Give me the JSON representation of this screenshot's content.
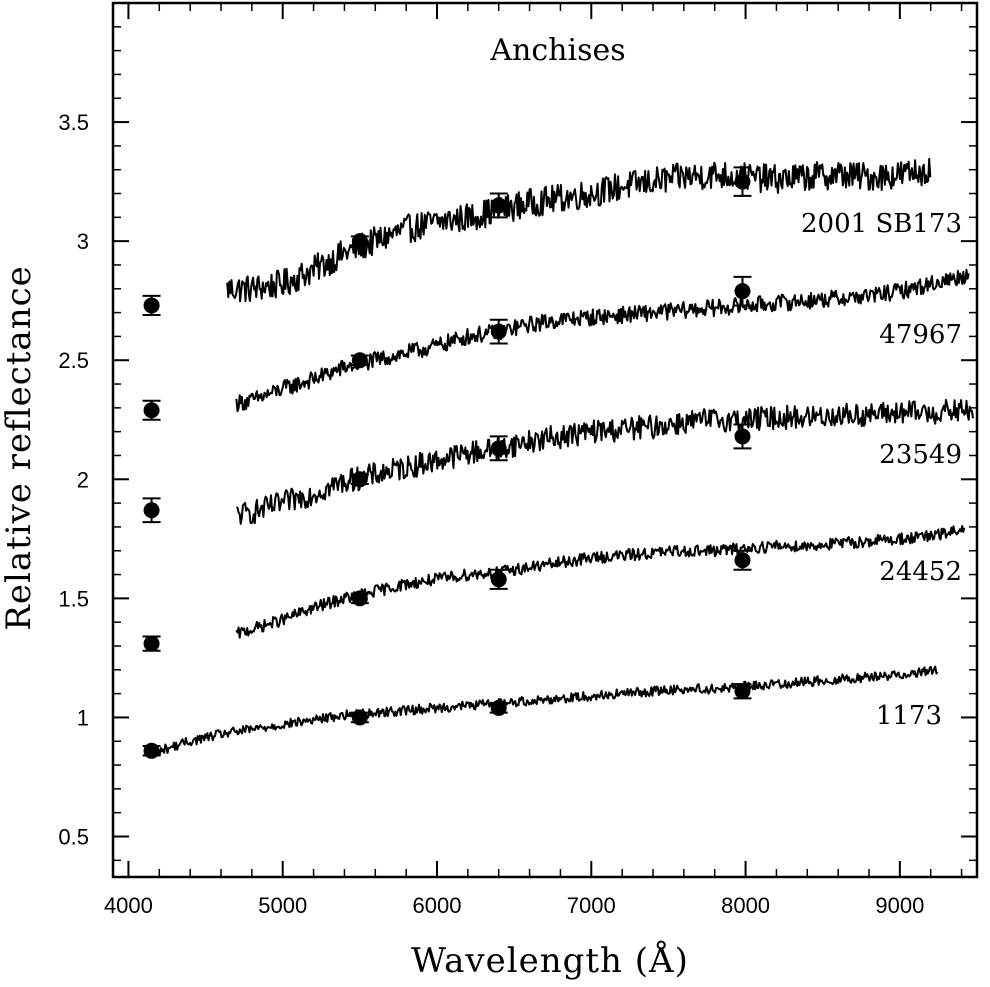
{
  "chart_data": {
    "type": "line",
    "title": "Anchises",
    "xlabel": "Wavelength (Å)",
    "ylabel": "Relative reflectance",
    "xlim": [
      3900,
      9500
    ],
    "ylim": [
      0.33,
      4.0
    ],
    "xticks": [
      4000,
      5000,
      6000,
      7000,
      8000,
      9000
    ],
    "xtick_labels": [
      "4000",
      "5000",
      "6000",
      "7000",
      "8000",
      "9000"
    ],
    "yticks": [
      0.5,
      1,
      1.5,
      2,
      2.5,
      3,
      3.5
    ],
    "ytick_labels": [
      "0.5",
      "1",
      "1.5",
      "2",
      "2.5",
      "3",
      "3.5"
    ],
    "grid": false,
    "legend": "none",
    "line_color": "#000000",
    "series": [
      {
        "name": "2001 SB173",
        "spectrum": {
          "x": [
            4640,
            4800,
            5000,
            5200,
            5400,
            5600,
            5800,
            6000,
            6200,
            6400,
            6600,
            6800,
            7000,
            7200,
            7400,
            7600,
            7800,
            8000,
            8200,
            8400,
            8600,
            8800,
            9000,
            9200
          ],
          "y": [
            2.8,
            2.8,
            2.82,
            2.88,
            2.95,
            3.0,
            3.05,
            3.08,
            3.1,
            3.13,
            3.16,
            3.18,
            3.2,
            3.23,
            3.25,
            3.27,
            3.28,
            3.27,
            3.26,
            3.27,
            3.28,
            3.27,
            3.28,
            3.3
          ],
          "noise": 0.06
        },
        "photometry": [
          {
            "x": 4150,
            "y": 2.73,
            "err": 0.04
          },
          {
            "x": 5500,
            "y": 3.0,
            "err": 0.02
          },
          {
            "x": 6400,
            "y": 3.15,
            "err": 0.05
          },
          {
            "x": 7980,
            "y": 3.25,
            "err": 0.06
          }
        ]
      },
      {
        "name": "47967",
        "spectrum": {
          "x": [
            4700,
            4800,
            5000,
            5200,
            5400,
            5600,
            5800,
            6000,
            6200,
            6400,
            6600,
            6800,
            7000,
            7200,
            7400,
            7600,
            7800,
            8000,
            8200,
            8400,
            8600,
            8800,
            9000,
            9200,
            9450
          ],
          "y": [
            2.32,
            2.33,
            2.38,
            2.42,
            2.47,
            2.5,
            2.53,
            2.56,
            2.6,
            2.62,
            2.65,
            2.67,
            2.68,
            2.69,
            2.7,
            2.71,
            2.72,
            2.73,
            2.74,
            2.75,
            2.76,
            2.77,
            2.79,
            2.82,
            2.86
          ],
          "noise": 0.035
        },
        "photometry": [
          {
            "x": 4150,
            "y": 2.29,
            "err": 0.04
          },
          {
            "x": 5500,
            "y": 2.5,
            "err": 0.02
          },
          {
            "x": 6400,
            "y": 2.62,
            "err": 0.05
          },
          {
            "x": 7980,
            "y": 2.79,
            "err": 0.06
          }
        ]
      },
      {
        "name": "23549",
        "spectrum": {
          "x": [
            4700,
            4800,
            5000,
            5200,
            5400,
            5600,
            5800,
            6000,
            6200,
            6400,
            6600,
            6800,
            7000,
            7200,
            7400,
            7600,
            7800,
            8000,
            8200,
            8400,
            8600,
            8800,
            9000,
            9200,
            9480
          ],
          "y": [
            1.85,
            1.86,
            1.9,
            1.94,
            1.99,
            2.02,
            2.05,
            2.08,
            2.11,
            2.13,
            2.16,
            2.18,
            2.2,
            2.21,
            2.22,
            2.24,
            2.25,
            2.25,
            2.26,
            2.26,
            2.27,
            2.27,
            2.28,
            2.28,
            2.29
          ],
          "noise": 0.05
        },
        "photometry": [
          {
            "x": 4150,
            "y": 1.87,
            "err": 0.05
          },
          {
            "x": 5500,
            "y": 2.0,
            "err": 0.02
          },
          {
            "x": 6400,
            "y": 2.13,
            "err": 0.05
          },
          {
            "x": 7980,
            "y": 2.18,
            "err": 0.05
          }
        ]
      },
      {
        "name": "24452",
        "spectrum": {
          "x": [
            4700,
            4800,
            5000,
            5200,
            5400,
            5600,
            5800,
            6000,
            6200,
            6400,
            6600,
            6800,
            7000,
            7200,
            7400,
            7600,
            7800,
            8000,
            8200,
            8400,
            8600,
            8800,
            9000,
            9200,
            9420
          ],
          "y": [
            1.35,
            1.37,
            1.41,
            1.46,
            1.5,
            1.53,
            1.56,
            1.58,
            1.6,
            1.61,
            1.63,
            1.65,
            1.67,
            1.68,
            1.69,
            1.7,
            1.7,
            1.71,
            1.72,
            1.72,
            1.73,
            1.74,
            1.75,
            1.76,
            1.79
          ],
          "noise": 0.025
        },
        "photometry": [
          {
            "x": 4150,
            "y": 1.31,
            "err": 0.03
          },
          {
            "x": 5500,
            "y": 1.5,
            "err": 0.02
          },
          {
            "x": 6400,
            "y": 1.58,
            "err": 0.04
          },
          {
            "x": 7980,
            "y": 1.66,
            "err": 0.04
          }
        ]
      },
      {
        "name": "1173",
        "spectrum": {
          "x": [
            4120,
            4200,
            4400,
            4600,
            4800,
            5000,
            5200,
            5400,
            5600,
            5800,
            6000,
            6200,
            6400,
            6600,
            6800,
            7000,
            7200,
            7400,
            7600,
            7800,
            8000,
            8200,
            8400,
            8600,
            8800,
            9000,
            9250
          ],
          "y": [
            0.85,
            0.86,
            0.9,
            0.93,
            0.95,
            0.97,
            0.99,
            1.01,
            1.02,
            1.03,
            1.04,
            1.05,
            1.06,
            1.07,
            1.08,
            1.09,
            1.1,
            1.11,
            1.12,
            1.12,
            1.13,
            1.14,
            1.15,
            1.16,
            1.17,
            1.18,
            1.2
          ],
          "noise": 0.02
        },
        "photometry": [
          {
            "x": 4150,
            "y": 0.86,
            "err": 0.02
          },
          {
            "x": 5500,
            "y": 1.0,
            "err": 0.02
          },
          {
            "x": 6400,
            "y": 1.04,
            "err": 0.02
          },
          {
            "x": 7980,
            "y": 1.11,
            "err": 0.03
          }
        ]
      }
    ]
  }
}
